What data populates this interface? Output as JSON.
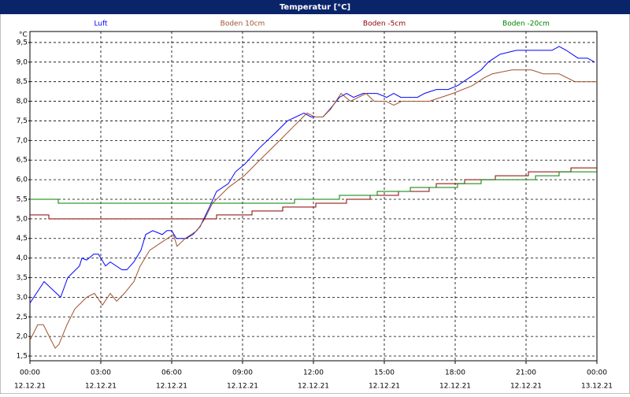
{
  "chart_data": {
    "type": "line",
    "title": "Temperatur [°C]",
    "y_unit": "°C",
    "series": [
      {
        "name": "Luft",
        "color": "#0000ff",
        "x": [
          0,
          0.6,
          1.3,
          1.6,
          2.1,
          2.2,
          2.4,
          2.7,
          2.9,
          3.2,
          3.4,
          3.9,
          4.1,
          4.4,
          4.7,
          4.9,
          5.2,
          5.6,
          5.8,
          6.0,
          6.2,
          6.6,
          6.9,
          7.2,
          7.6,
          7.9,
          8.4,
          8.7,
          9.1,
          9.7,
          10.4,
          10.9,
          11.6,
          11.9,
          12.4,
          12.7,
          13.1,
          13.4,
          13.7,
          14.1,
          14.7,
          15.1,
          15.4,
          15.7,
          16.4,
          16.7,
          17.2,
          17.7,
          18.1,
          18.6,
          19.1,
          19.4,
          19.9,
          20.6,
          21.4,
          22.1,
          22.4,
          22.7,
          23.2,
          23.6,
          23.9
        ],
        "values": [
          2.85,
          3.4,
          3.0,
          3.5,
          3.8,
          4.0,
          3.95,
          4.1,
          4.1,
          3.8,
          3.9,
          3.7,
          3.7,
          3.9,
          4.2,
          4.6,
          4.7,
          4.6,
          4.7,
          4.7,
          4.5,
          4.5,
          4.6,
          4.8,
          5.3,
          5.7,
          5.9,
          6.2,
          6.4,
          6.8,
          7.2,
          7.5,
          7.7,
          7.6,
          7.6,
          7.8,
          8.1,
          8.2,
          8.1,
          8.2,
          8.2,
          8.1,
          8.2,
          8.1,
          8.1,
          8.2,
          8.3,
          8.3,
          8.4,
          8.6,
          8.8,
          9.0,
          9.2,
          9.3,
          9.3,
          9.3,
          9.4,
          9.3,
          9.1,
          9.1,
          9.0
        ]
      },
      {
        "name": "Boden 10cm",
        "color": "#a0522d",
        "x": [
          0,
          0.33,
          0.57,
          0.9,
          1.07,
          1.23,
          1.57,
          1.9,
          2.4,
          2.73,
          3.07,
          3.4,
          3.67,
          4.0,
          4.4,
          4.67,
          5.07,
          5.57,
          6.07,
          6.23,
          6.57,
          7.07,
          7.4,
          7.73,
          8.4,
          9.07,
          9.73,
          10.57,
          11.23,
          11.73,
          12.07,
          12.4,
          12.73,
          13.17,
          13.57,
          14.23,
          14.57,
          15.07,
          15.4,
          15.73,
          16.9,
          17.4,
          17.9,
          18.73,
          19.23,
          19.57,
          20.4,
          21.23,
          21.73,
          22.4,
          23.07,
          24
        ],
        "values": [
          1.9,
          2.3,
          2.3,
          1.9,
          1.7,
          1.8,
          2.3,
          2.7,
          3.0,
          3.1,
          2.8,
          3.1,
          2.9,
          3.1,
          3.4,
          3.8,
          4.2,
          4.4,
          4.6,
          4.3,
          4.5,
          4.7,
          5.0,
          5.4,
          5.8,
          6.1,
          6.5,
          7.0,
          7.4,
          7.7,
          7.6,
          7.6,
          7.8,
          8.2,
          8.0,
          8.2,
          8.0,
          8.0,
          7.9,
          8.0,
          8.0,
          8.1,
          8.2,
          8.4,
          8.6,
          8.7,
          8.8,
          8.8,
          8.7,
          8.7,
          8.5,
          8.5
        ]
      },
      {
        "name": "Boden -5cm",
        "color": "#8b0000",
        "x": [
          0,
          0.8,
          0.8,
          7.9,
          7.9,
          9.4,
          9.4,
          10.7,
          10.7,
          12.1,
          12.1,
          13.4,
          13.4,
          14.4,
          14.4,
          15.6,
          15.6,
          16.9,
          16.9,
          17.2,
          17.2,
          18.4,
          18.4,
          19.7,
          19.7,
          21.1,
          21.1,
          22.9,
          22.9,
          24
        ],
        "values": [
          5.1,
          5.1,
          5.0,
          5.0,
          5.1,
          5.1,
          5.2,
          5.2,
          5.3,
          5.3,
          5.4,
          5.4,
          5.5,
          5.5,
          5.6,
          5.6,
          5.7,
          5.7,
          5.8,
          5.8,
          5.9,
          5.9,
          6.0,
          6.0,
          6.1,
          6.1,
          6.2,
          6.2,
          6.3,
          6.3
        ]
      },
      {
        "name": "Boden -20cm",
        "color": "#008000",
        "x": [
          0,
          1.2,
          1.2,
          11.2,
          11.2,
          13.1,
          13.1,
          14.7,
          14.7,
          16.1,
          16.1,
          18.1,
          18.1,
          19.1,
          19.1,
          21.4,
          21.4,
          22.4,
          22.4,
          24
        ],
        "values": [
          5.5,
          5.5,
          5.4,
          5.4,
          5.5,
          5.5,
          5.6,
          5.6,
          5.7,
          5.7,
          5.8,
          5.8,
          5.9,
          5.9,
          6.0,
          6.0,
          6.1,
          6.1,
          6.2,
          6.2
        ]
      }
    ],
    "xlim": [
      0,
      24
    ],
    "xticks": [
      {
        "value": 0,
        "label": "00:00"
      },
      {
        "value": 3,
        "label": "03:00"
      },
      {
        "value": 6,
        "label": "06:00"
      },
      {
        "value": 9,
        "label": "09:00"
      },
      {
        "value": 12,
        "label": "12:00"
      },
      {
        "value": 15,
        "label": "15:00"
      },
      {
        "value": 18,
        "label": "18:00"
      },
      {
        "value": 21,
        "label": "21:00"
      },
      {
        "value": 24,
        "label": "00:00"
      }
    ],
    "xtick_dates": [
      "12.12.21",
      "12.12.21",
      "12.12.21",
      "12.12.21",
      "12.12.21",
      "12.12.21",
      "12.12.21",
      "12.12.21",
      "13.12.21"
    ],
    "ylim": [
      1.38,
      9.78
    ],
    "yticks": [
      {
        "value": 1.5,
        "label": "1,5"
      },
      {
        "value": 2,
        "label": "2,0"
      },
      {
        "value": 2.5,
        "label": "2,5"
      },
      {
        "value": 3,
        "label": "3,0"
      },
      {
        "value": 3.5,
        "label": "3,5"
      },
      {
        "value": 4,
        "label": "4,0"
      },
      {
        "value": 4.5,
        "label": "4,5"
      },
      {
        "value": 5,
        "label": "5,0"
      },
      {
        "value": 5.5,
        "label": "5,5"
      },
      {
        "value": 6,
        "label": "6,0"
      },
      {
        "value": 6.5,
        "label": "6,5"
      },
      {
        "value": 7,
        "label": "7,0"
      },
      {
        "value": 7.5,
        "label": "7,5"
      },
      {
        "value": 8,
        "label": "8,0"
      },
      {
        "value": 8.5,
        "label": "8,5"
      },
      {
        "value": 9,
        "label": "9,0"
      },
      {
        "value": 9.5,
        "label": "9,5"
      }
    ],
    "grid": true
  }
}
